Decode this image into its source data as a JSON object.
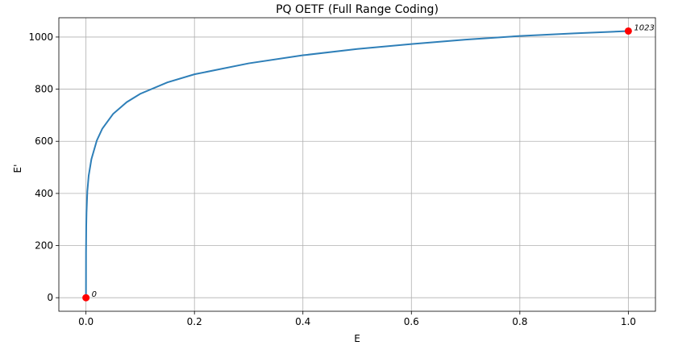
{
  "chart_data": {
    "type": "line",
    "title": "PQ OETF (Full Range Coding)",
    "xlabel": "E",
    "ylabel": "E'",
    "xlim": [
      -0.05,
      1.05
    ],
    "ylim": [
      -52,
      1074
    ],
    "xticks": [
      0.0,
      0.2,
      0.4,
      0.6,
      0.8,
      1.0
    ],
    "xtick_labels": [
      "0.0",
      "0.2",
      "0.4",
      "0.6",
      "0.8",
      "1.0"
    ],
    "yticks": [
      0,
      200,
      400,
      600,
      800,
      1000
    ],
    "ytick_labels": [
      "0",
      "200",
      "400",
      "600",
      "800",
      "1000"
    ],
    "grid": true,
    "series": [
      {
        "color": "#2e7fb8",
        "x": [
          0.0,
          0.0001,
          0.0005,
          0.001,
          0.0025,
          0.005,
          0.01,
          0.02,
          0.03,
          0.05,
          0.075,
          0.1,
          0.15,
          0.2,
          0.3,
          0.4,
          0.5,
          0.6,
          0.7,
          0.8,
          0.9,
          1.0
        ],
        "y": [
          0,
          172,
          274,
          327,
          408,
          468,
          531,
          603,
          648,
          705,
          750,
          782,
          826,
          857,
          899,
          930,
          954,
          973,
          990,
          1004,
          1014,
          1023
        ]
      }
    ],
    "points": [
      {
        "x": 0.0,
        "y": 0,
        "label": "0",
        "color": "#ff0000"
      },
      {
        "x": 1.0,
        "y": 1023,
        "label": "1023",
        "color": "#ff0000"
      }
    ]
  }
}
